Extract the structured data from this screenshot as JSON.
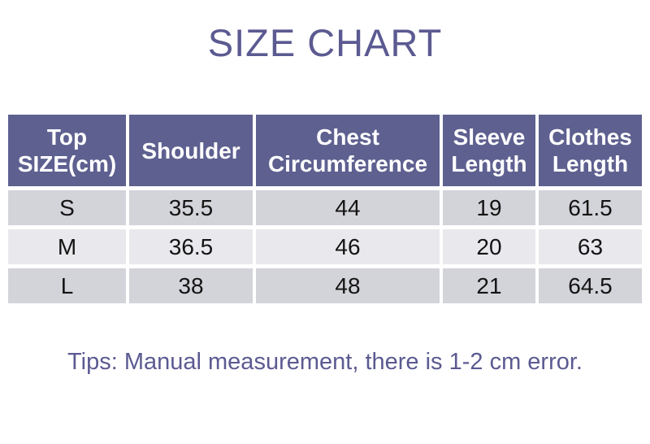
{
  "page": {
    "title": "SIZE CHART",
    "tips": "Tips: Manual measurement, there is 1-2 cm error."
  },
  "colors": {
    "accent_purple": "#5b5a91",
    "header_bg": "#5e6090",
    "header_text": "#ffffff",
    "row_dark": "#d3d3da",
    "row_light": "#e9e9ed",
    "data_text": "#141414",
    "background": "#ffffff"
  },
  "chart_data": {
    "type": "table",
    "title": "SIZE CHART",
    "columns": [
      "Top SIZE(cm)",
      "Shoulder",
      "Chest Circumference",
      "Sleeve Length",
      "Clothes Length"
    ],
    "rows": [
      {
        "cells": [
          "S",
          "35.5",
          "44",
          "19",
          "61.5"
        ]
      },
      {
        "cells": [
          "M",
          "36.5",
          "46",
          "20",
          "63"
        ]
      },
      {
        "cells": [
          "L",
          "38",
          "48",
          "21",
          "64.5"
        ]
      }
    ],
    "footnote": "Tips: Manual measurement, there is 1-2 cm error."
  }
}
